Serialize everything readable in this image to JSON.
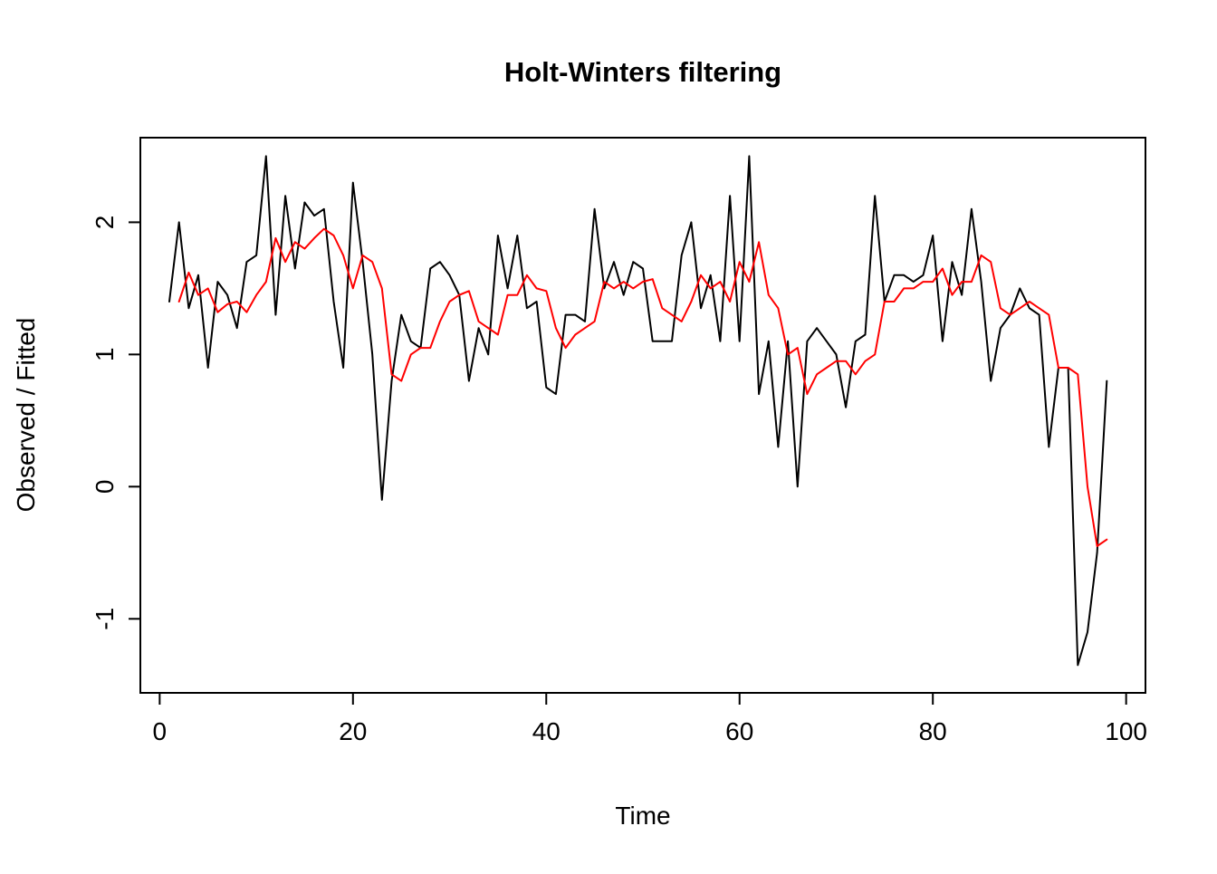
{
  "chart_data": {
    "type": "line",
    "title": "Holt-Winters filtering",
    "xlabel": "Time",
    "ylabel": "Observed / Fitted",
    "x_ticks": [
      0,
      20,
      40,
      60,
      80,
      100
    ],
    "y_ticks": [
      -1,
      0,
      1,
      2
    ],
    "xlim": [
      -2,
      102
    ],
    "ylim": [
      -1.56,
      2.64
    ],
    "grid": false,
    "legend": "none",
    "series": [
      {
        "name": "observed",
        "color": "#000000",
        "start_x": 1,
        "values": [
          1.4,
          2.0,
          1.35,
          1.6,
          0.9,
          1.55,
          1.45,
          1.2,
          1.7,
          1.75,
          2.5,
          1.3,
          2.2,
          1.65,
          2.15,
          2.05,
          2.1,
          1.4,
          0.9,
          2.3,
          1.7,
          1.0,
          -0.1,
          0.8,
          1.3,
          1.1,
          1.05,
          1.65,
          1.7,
          1.6,
          1.45,
          0.8,
          1.2,
          1.0,
          1.9,
          1.5,
          1.9,
          1.35,
          1.4,
          0.75,
          0.7,
          1.3,
          1.3,
          1.25,
          2.1,
          1.5,
          1.7,
          1.45,
          1.7,
          1.65,
          1.1,
          1.1,
          1.1,
          1.75,
          2.0,
          1.35,
          1.6,
          1.1,
          2.2,
          1.1,
          2.5,
          0.7,
          1.1,
          0.3,
          1.1,
          0.0,
          1.1,
          1.2,
          1.1,
          1.0,
          0.6,
          1.1,
          1.15,
          2.2,
          1.4,
          1.6,
          1.6,
          1.55,
          1.6,
          1.9,
          1.1,
          1.7,
          1.45,
          2.1,
          1.55,
          0.8,
          1.2,
          1.3,
          1.5,
          1.35,
          1.3,
          0.3,
          0.9,
          0.9,
          -1.35,
          -1.1,
          -0.5,
          0.8
        ]
      },
      {
        "name": "fitted",
        "color": "#ff0000",
        "start_x": 2,
        "values": [
          1.4,
          1.62,
          1.45,
          1.5,
          1.32,
          1.38,
          1.4,
          1.32,
          1.45,
          1.55,
          1.88,
          1.7,
          1.85,
          1.8,
          1.88,
          1.95,
          1.9,
          1.75,
          1.5,
          1.75,
          1.7,
          1.5,
          0.85,
          0.8,
          1.0,
          1.05,
          1.05,
          1.25,
          1.4,
          1.45,
          1.48,
          1.25,
          1.2,
          1.15,
          1.45,
          1.45,
          1.6,
          1.5,
          1.48,
          1.2,
          1.05,
          1.15,
          1.2,
          1.25,
          1.55,
          1.5,
          1.55,
          1.5,
          1.55,
          1.57,
          1.35,
          1.3,
          1.25,
          1.4,
          1.6,
          1.5,
          1.55,
          1.4,
          1.7,
          1.55,
          1.85,
          1.45,
          1.35,
          1.0,
          1.05,
          0.7,
          0.85,
          0.9,
          0.95,
          0.95,
          0.85,
          0.95,
          1.0,
          1.4,
          1.4,
          1.5,
          1.5,
          1.55,
          1.55,
          1.65,
          1.45,
          1.55,
          1.55,
          1.75,
          1.7,
          1.35,
          1.3,
          1.35,
          1.4,
          1.35,
          1.3,
          0.9,
          0.9,
          0.85,
          0.0,
          -0.45,
          -0.4
        ]
      }
    ]
  }
}
